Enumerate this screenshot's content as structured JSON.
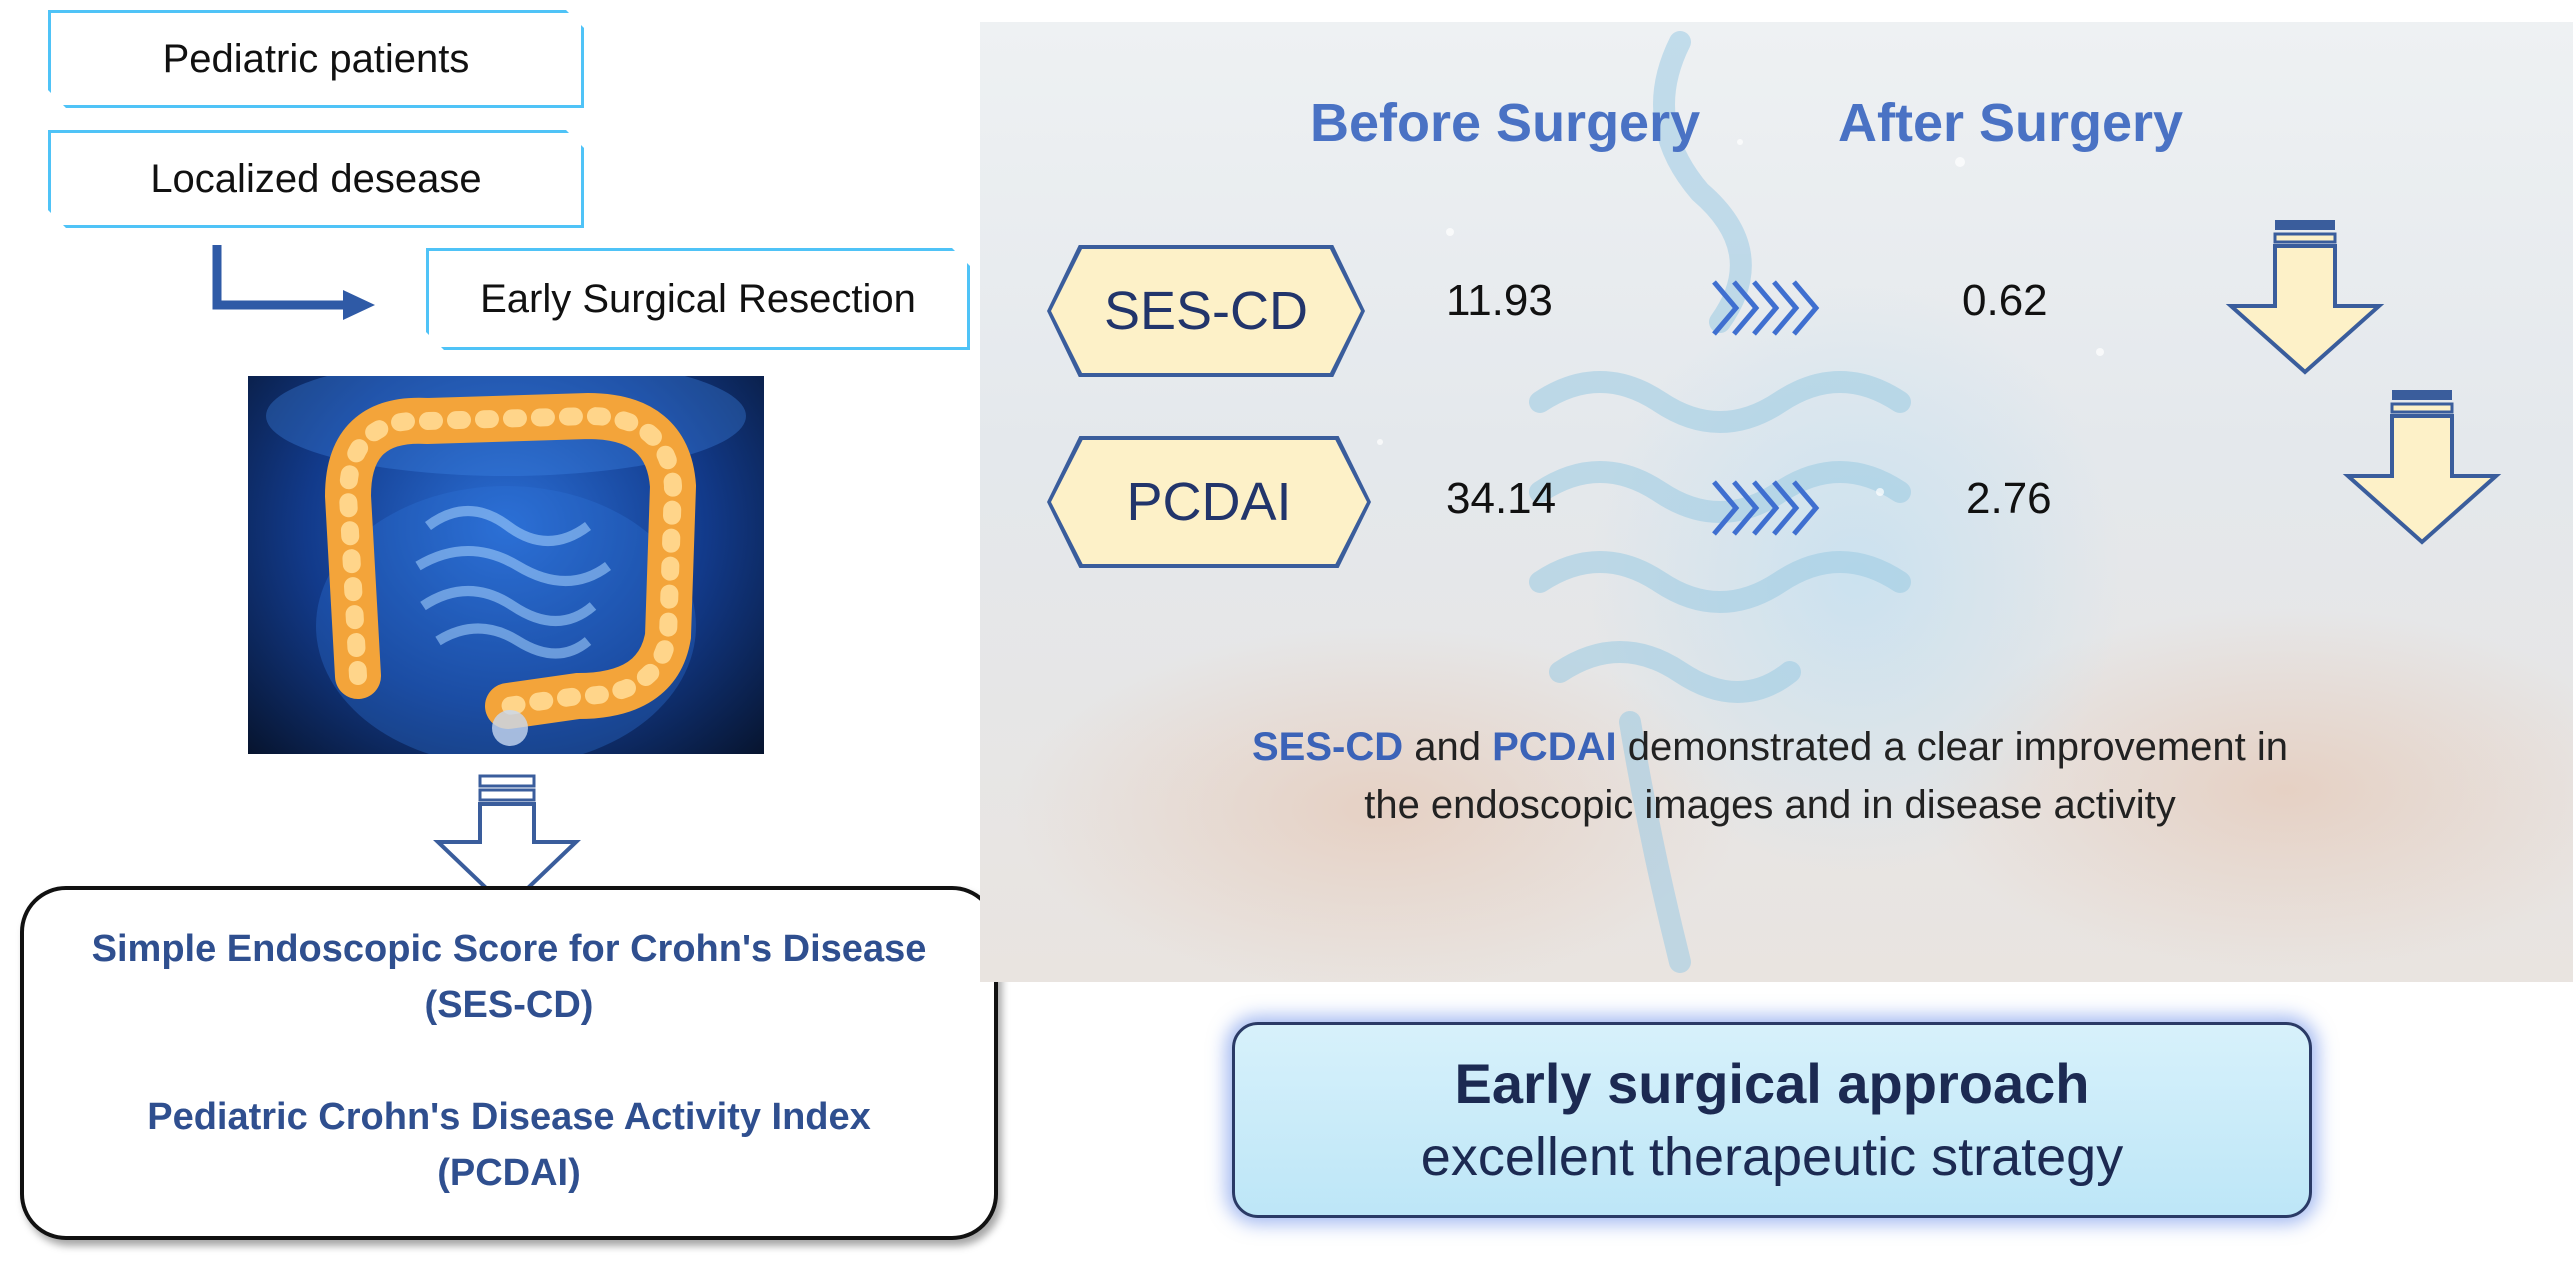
{
  "flow": {
    "box1": "Pediatric patients",
    "box2": "Localized desease",
    "box3": "Early Surgical Resection"
  },
  "definitions": {
    "ses_name": "Simple Endoscopic Score for Crohn's Disease",
    "ses_abbr": "(SES-CD)",
    "pcdai_name": "Pediatric Crohn's Disease Activity Index",
    "pcdai_abbr": "(PCDAI)"
  },
  "results": {
    "before_heading": "Before Surgery",
    "after_heading": "After Surgery",
    "rows": [
      {
        "label": "SES-CD",
        "before": "11.93",
        "after": "0.62"
      },
      {
        "label": "PCDAI",
        "before": "34.14",
        "after": "2.76"
      }
    ],
    "summary_term1": "SES-CD",
    "summary_and": "and",
    "summary_term2": "PCDAI",
    "summary_rest1": "demonstrated a clear improvement in",
    "summary_rest2": "the endoscopic images and in disease activity"
  },
  "conclusion": {
    "title": "Early surgical approach",
    "subtitle": "excellent therapeutic strategy"
  },
  "colors": {
    "heading_blue": "#4a72c4",
    "box_border": "#4fc3f7",
    "hex_fill": "#fdf1c8",
    "arrow_fill": "#fdf1c8",
    "arrow_stroke": "#3a5d9c"
  }
}
